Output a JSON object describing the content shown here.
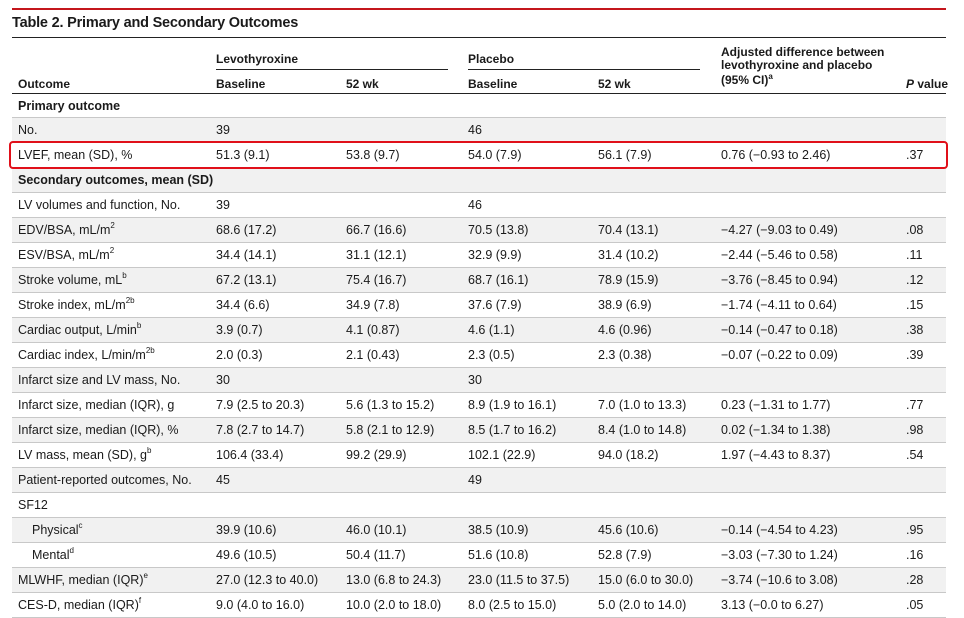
{
  "table": {
    "title": "Table 2. Primary and Secondary Outcomes",
    "group_levo": "Levothyroxine",
    "group_placebo": "Placebo",
    "adj_header_line1": "Adjusted difference between",
    "adj_header_line2": "levothyroxine and placebo",
    "adj_header_line3": "(95% CI)",
    "adj_header_sup": "a",
    "col_outcome": "Outcome",
    "col_baseline": "Baseline",
    "col_52wk": "52 wk",
    "col_p_italic": "P",
    "col_p_rest": " value",
    "rows": [
      {
        "label": "Primary outcome",
        "section": true
      },
      {
        "label": "No.",
        "lb": "39",
        "pb": "46"
      },
      {
        "label": "LVEF, mean (SD), %",
        "lb": "51.3 (9.1)",
        "l52": "53.8 (9.7)",
        "pb": "54.0 (7.9)",
        "p52": "56.1 (7.9)",
        "diff": "0.76 (−0.93 to 2.46)",
        "p": ".37"
      },
      {
        "label": "Secondary outcomes, mean (SD)",
        "section": true
      },
      {
        "label": "LV volumes and function, No.",
        "lb": "39",
        "pb": "46"
      },
      {
        "label": "EDV/BSA, mL/m",
        "sup": "2",
        "lb": "68.6 (17.2)",
        "l52": "66.7 (16.6)",
        "pb": "70.5 (13.8)",
        "p52": "70.4 (13.1)",
        "diff": "−4.27 (−9.03 to 0.49)",
        "p": ".08"
      },
      {
        "label": "ESV/BSA, mL/m",
        "sup": "2",
        "lb": "34.4 (14.1)",
        "l52": "31.1 (12.1)",
        "pb": "32.9 (9.9)",
        "p52": "31.4 (10.2)",
        "diff": "−2.44 (−5.46 to 0.58)",
        "p": ".11"
      },
      {
        "label": "Stroke volume, mL",
        "sup": "b",
        "lb": "67.2 (13.1)",
        "l52": "75.4 (16.7)",
        "pb": "68.7 (16.1)",
        "p52": "78.9 (15.9)",
        "diff": "−3.76 (−8.45 to 0.94)",
        "p": ".12"
      },
      {
        "label": "Stroke index, mL/m",
        "sup": "2b",
        "lb": "34.4 (6.6)",
        "l52": "34.9 (7.8)",
        "pb": "37.6 (7.9)",
        "p52": "38.9 (6.9)",
        "diff": "−1.74 (−4.11 to 0.64)",
        "p": ".15"
      },
      {
        "label": "Cardiac output, L/min",
        "sup": "b",
        "lb": "3.9 (0.7)",
        "l52": "4.1 (0.87)",
        "pb": "4.6 (1.1)",
        "p52": "4.6 (0.96)",
        "diff": "−0.14 (−0.47 to 0.18)",
        "p": ".38"
      },
      {
        "label": "Cardiac index, L/min/m",
        "sup": "2b",
        "lb": "2.0 (0.3)",
        "l52": "2.1 (0.43)",
        "pb": "2.3 (0.5)",
        "p52": "2.3 (0.38)",
        "diff": "−0.07 (−0.22 to 0.09)",
        "p": ".39"
      },
      {
        "label": "Infarct size and LV mass, No.",
        "lb": "30",
        "pb": "30"
      },
      {
        "label": "Infarct size, median (IQR), g",
        "lb": "7.9 (2.5 to 20.3)",
        "l52": "5.6 (1.3 to 15.2)",
        "pb": "8.9 (1.9 to 16.1)",
        "p52": "7.0 (1.0 to 13.3)",
        "diff": "0.23 (−1.31 to 1.77)",
        "p": ".77"
      },
      {
        "label": "Infarct size, median (IQR), %",
        "lb": "7.8 (2.7 to 14.7)",
        "l52": "5.8 (2.1 to 12.9)",
        "pb": "8.5 (1.7 to 16.2)",
        "p52": "8.4 (1.0 to 14.8)",
        "diff": "0.02 (−1.34 to 1.38)",
        "p": ".98"
      },
      {
        "label": "LV mass, mean (SD), g",
        "sup": "b",
        "lb": "106.4 (33.4)",
        "l52": "99.2 (29.9)",
        "pb": "102.1 (22.9)",
        "p52": "94.0 (18.2)",
        "diff": "1.97 (−4.43 to 8.37)",
        "p": ".54"
      },
      {
        "label": "Patient-reported outcomes, No.",
        "lb": "45",
        "pb": "49"
      },
      {
        "label": "SF12"
      },
      {
        "label": "Physical",
        "sup": "c",
        "indent": true,
        "lb": "39.9 (10.6)",
        "l52": "46.0 (10.1)",
        "pb": "38.5 (10.9)",
        "p52": "45.6 (10.6)",
        "diff": "−0.14 (−4.54 to 4.23)",
        "p": ".95"
      },
      {
        "label": "Mental",
        "sup": "d",
        "indent": true,
        "lb": "49.6 (10.5)",
        "l52": "50.4 (11.7)",
        "pb": "51.6 (10.8)",
        "p52": "52.8 (7.9)",
        "diff": "−3.03 (−7.30 to 1.24)",
        "p": ".16"
      },
      {
        "label": "MLWHF, median (IQR)",
        "sup": "e",
        "lb": "27.0 (12.3 to 40.0)",
        "l52": "13.0 (6.8 to 24.3)",
        "pb": "23.0 (11.5 to 37.5)",
        "p52": "15.0 (6.0 to 30.0)",
        "diff": "−3.74 (−10.6 to 3.08)",
        "p": ".28"
      },
      {
        "label": "CES-D, median (IQR)",
        "sup": "f",
        "lb": "9.0 (4.0 to 16.0)",
        "l52": "10.0 (2.0 to 18.0)",
        "pb": "8.0 (2.5 to 15.0)",
        "p52": "5.0 (2.0 to 14.0)",
        "diff": "3.13 (−0.0 to 6.27)",
        "p": ".05"
      }
    ]
  },
  "highlight_color": "#e0101a",
  "accent_color": "#c4161c"
}
